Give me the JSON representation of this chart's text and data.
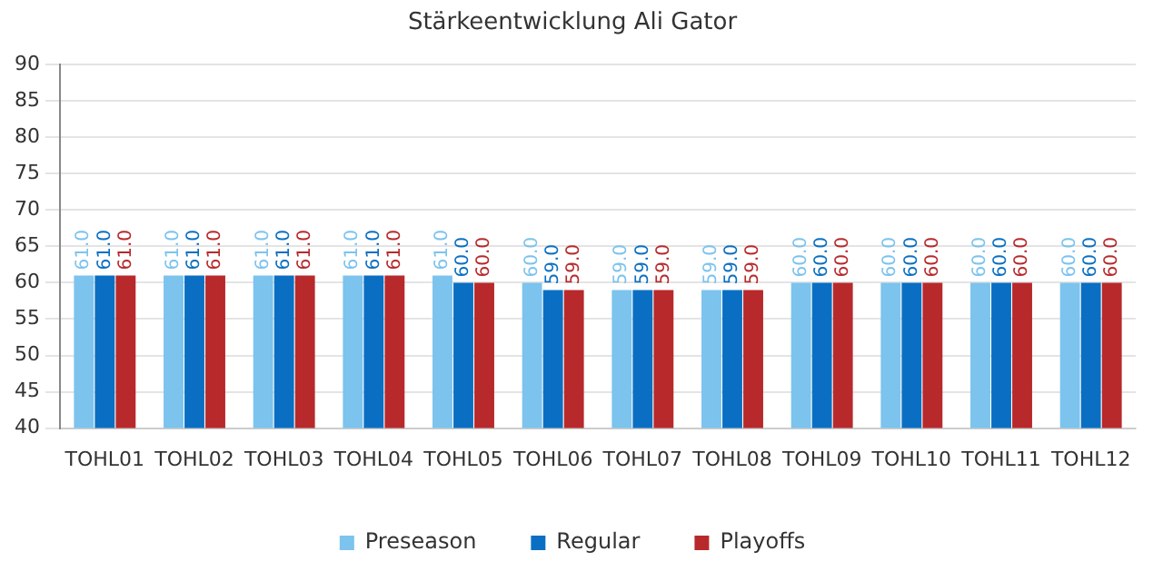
{
  "chart_data": {
    "type": "bar",
    "title": "Stärkeentwicklung Ali Gator",
    "categories": [
      "TOHL01",
      "TOHL02",
      "TOHL03",
      "TOHL04",
      "TOHL05",
      "TOHL06",
      "TOHL07",
      "TOHL08",
      "TOHL09",
      "TOHL10",
      "TOHL11",
      "TOHL12"
    ],
    "series": [
      {
        "name": "Preseason",
        "color": "#7cc3ee",
        "values": [
          61,
          61,
          61,
          61,
          61,
          60,
          59,
          59,
          60,
          60,
          60,
          60
        ],
        "value_labels": [
          "61.0",
          "61.0",
          "61.0",
          "61.0",
          "61.0",
          "60.0",
          "59.0",
          "59.0",
          "60.0",
          "60.0",
          "60.0",
          "60.0"
        ]
      },
      {
        "name": "Regular",
        "color": "#0a6fc2",
        "values": [
          61,
          61,
          61,
          61,
          60,
          59,
          59,
          59,
          60,
          60,
          60,
          60
        ],
        "value_labels": [
          "61.0",
          "61.0",
          "61.0",
          "61.0",
          "60.0",
          "59.0",
          "59.0",
          "59.0",
          "60.0",
          "60.0",
          "60.0",
          "60.0"
        ]
      },
      {
        "name": "Playoffs",
        "color": "#b8292b",
        "values": [
          61,
          61,
          61,
          61,
          60,
          59,
          59,
          59,
          60,
          60,
          60,
          60
        ],
        "value_labels": [
          "61.0",
          "61.0",
          "61.0",
          "61.0",
          "60.0",
          "59.0",
          "59.0",
          "59.0",
          "60.0",
          "60.0",
          "60.0",
          "60.0"
        ]
      }
    ],
    "ylim": [
      40,
      90
    ],
    "yticks": [
      40,
      45,
      50,
      55,
      60,
      65,
      70,
      75,
      80,
      85,
      90
    ],
    "grid": "y",
    "legend": "bottom"
  }
}
